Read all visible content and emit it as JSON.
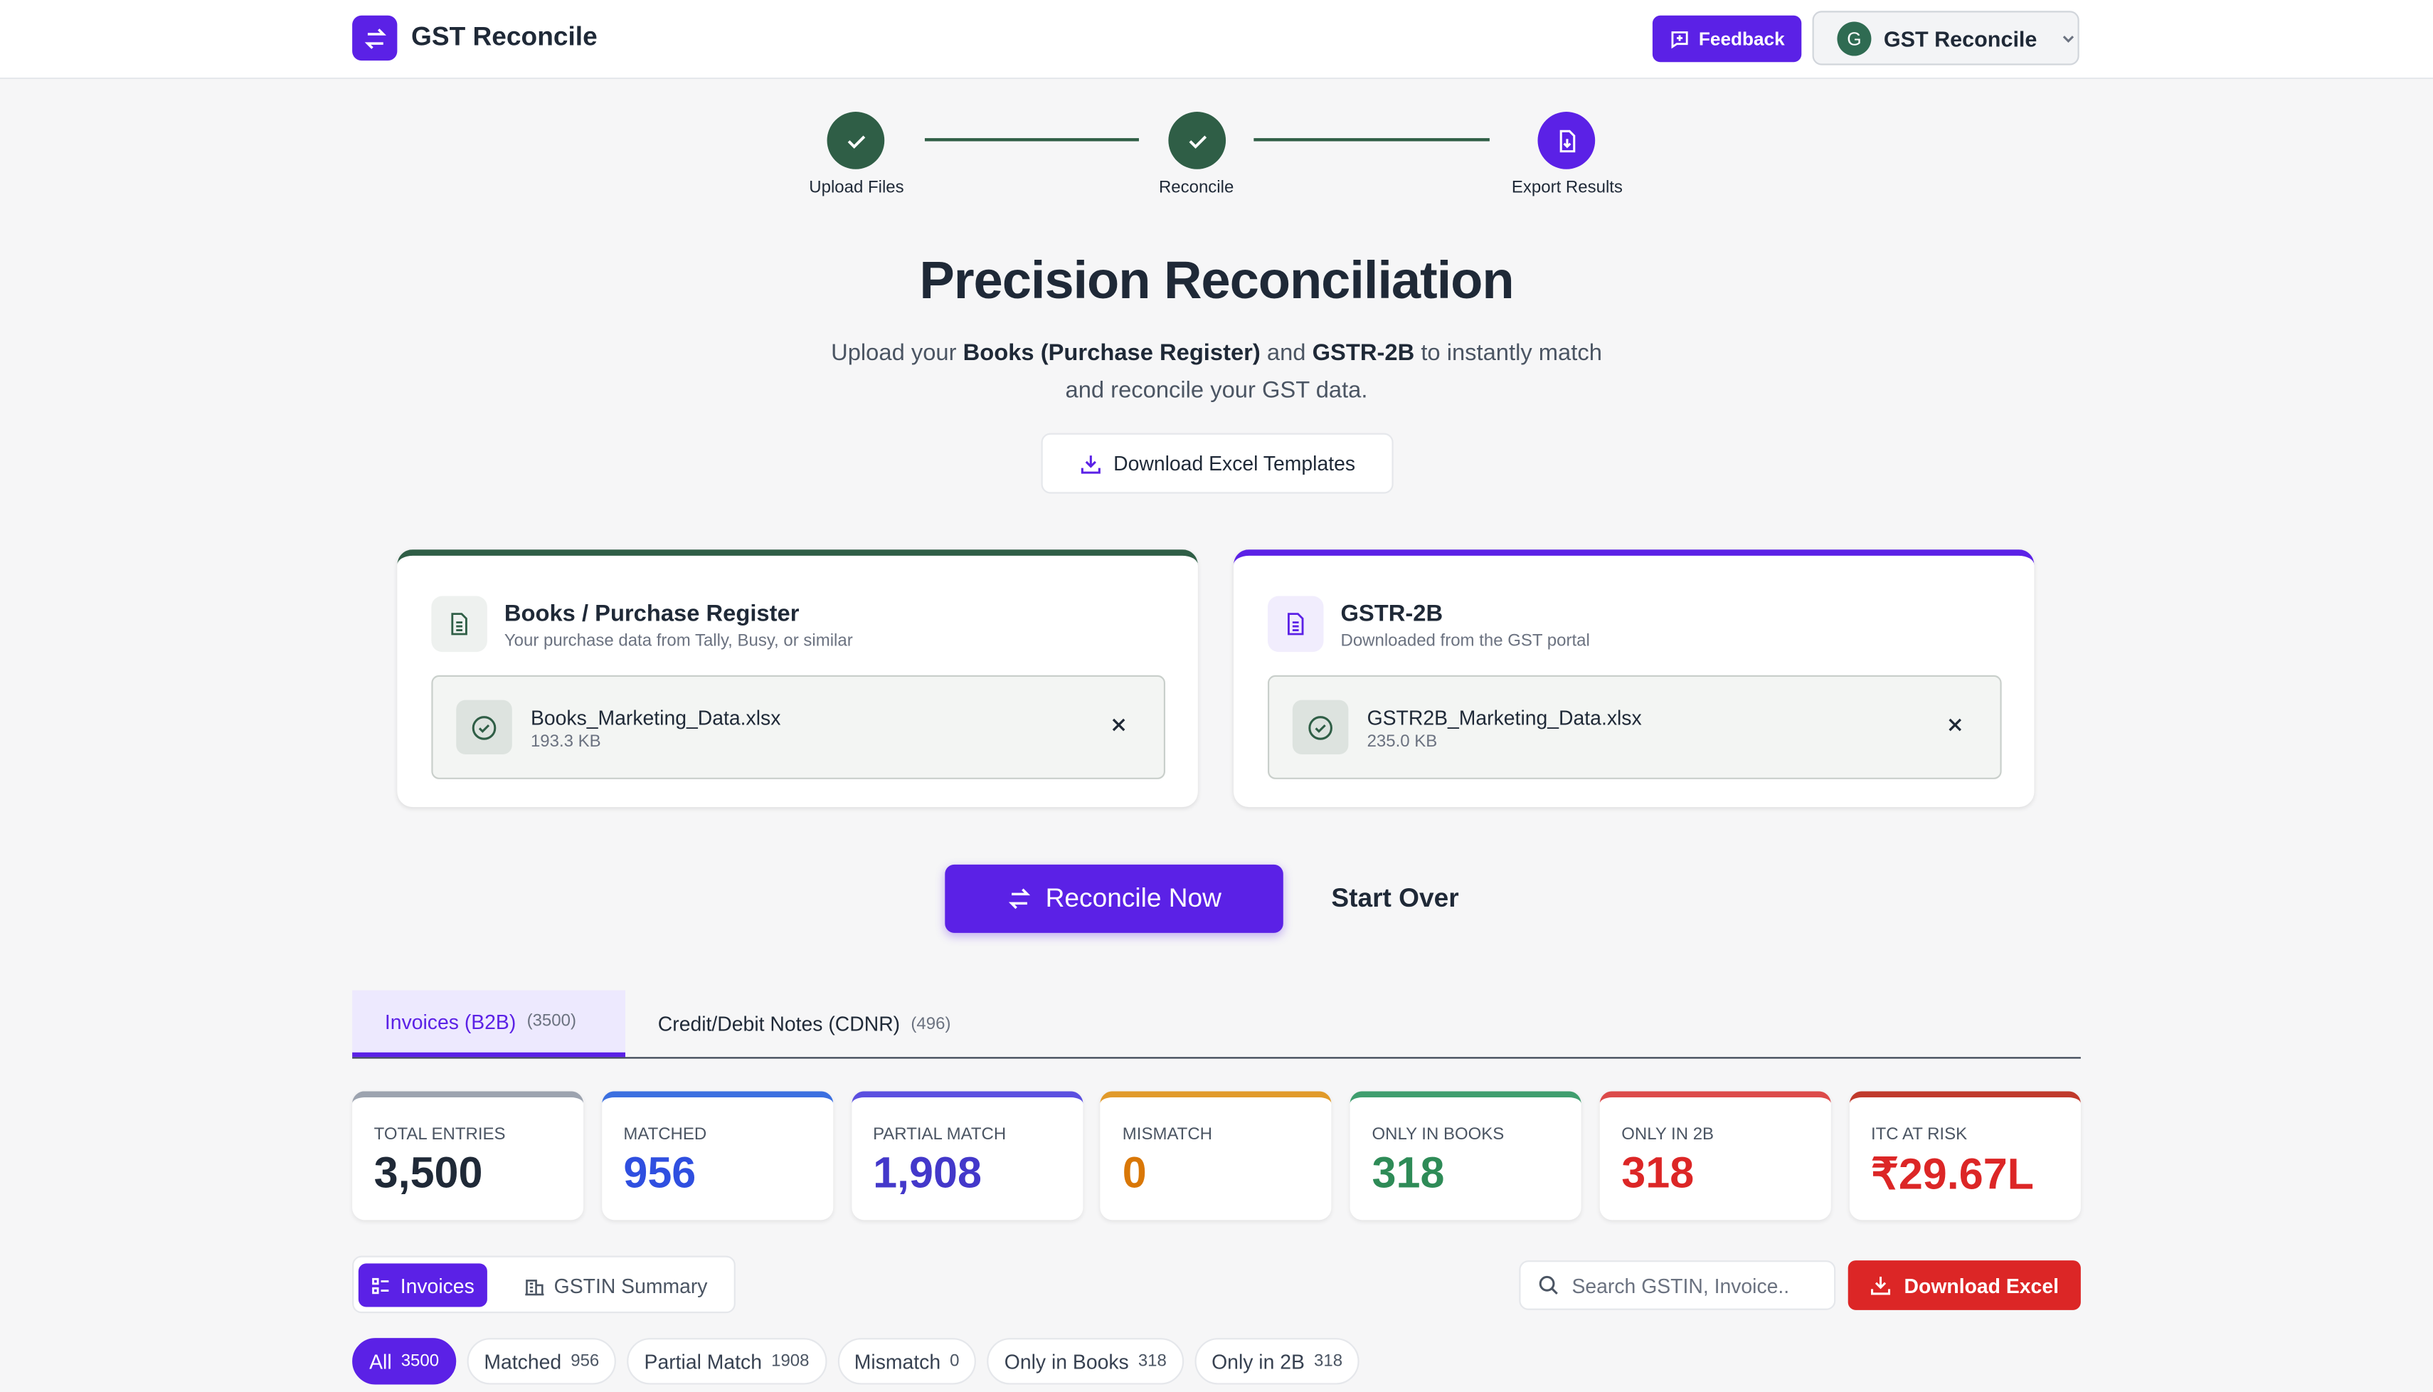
{
  "header": {
    "brand": "GST Reconcile",
    "feedback": "Feedback",
    "account_initial": "G",
    "account_name": "GST Reconcile"
  },
  "steps": [
    "Upload Files",
    "Reconcile",
    "Export Results"
  ],
  "hero": {
    "title": "Precision Reconciliation",
    "subtitle": [
      "Upload your ",
      "Books (Purchase Register)",
      " and ",
      "GSTR-2B",
      " to instantly match and reconcile your GST data."
    ],
    "template_button": "Download Excel Templates"
  },
  "cards": [
    {
      "title": "Books / Purchase Register",
      "subtitle": "Your purchase data from Tally, Busy, or similar",
      "file_name": "Books_Marketing_Data.xlsx",
      "file_size": "193.3 KB"
    },
    {
      "title": "GSTR-2B",
      "subtitle": "Downloaded from the GST portal",
      "file_name": "GSTR2B_Marketing_Data.xlsx",
      "file_size": "235.0 KB"
    }
  ],
  "actions": {
    "primary": "Reconcile Now",
    "secondary": "Start Over"
  },
  "tabs": [
    {
      "label": "Invoices (B2B)",
      "count": "(3500)"
    },
    {
      "label": "Credit/Debit Notes (CDNR)",
      "count": "(496)"
    }
  ],
  "stats": [
    {
      "label": "TOTAL ENTRIES",
      "value": "3,500"
    },
    {
      "label": "MATCHED",
      "value": "956"
    },
    {
      "label": "PARTIAL MATCH",
      "value": "1,908"
    },
    {
      "label": "MISMATCH",
      "value": "0"
    },
    {
      "label": "ONLY IN BOOKS",
      "value": "318"
    },
    {
      "label": "ONLY IN 2B",
      "value": "318"
    },
    {
      "label": "ITC AT RISK",
      "value": "₹29.67L"
    }
  ],
  "views": [
    "Invoices",
    "GSTIN Summary"
  ],
  "search_placeholder": "Search GSTIN, Invoice..",
  "download_button": "Download Excel",
  "filters": [
    {
      "label": "All",
      "count": 3500
    },
    {
      "label": "Matched",
      "count": 956
    },
    {
      "label": "Partial Match",
      "count": 1908
    },
    {
      "label": "Mismatch",
      "count": 0
    },
    {
      "label": "Only in Books",
      "count": 318
    },
    {
      "label": "Only in 2B",
      "count": 318
    }
  ]
}
